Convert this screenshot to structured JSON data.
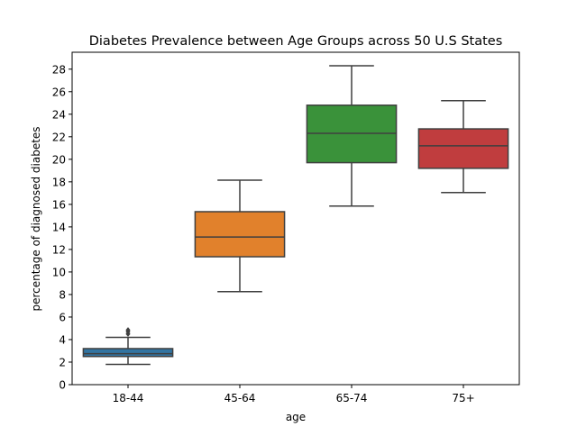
{
  "chart_data": {
    "type": "box",
    "title": "Diabetes Prevalence between Age Groups across 50 U.S States",
    "xlabel": "age",
    "ylabel": "percentage of diagnosed diabetes",
    "categories": [
      "18-44",
      "45-64",
      "65-74",
      "75+"
    ],
    "ylim": [
      0,
      29.5
    ],
    "yticks": [
      0,
      2,
      4,
      6,
      8,
      10,
      12,
      14,
      16,
      18,
      20,
      22,
      24,
      26,
      28
    ],
    "grid": false,
    "legend": "none",
    "boxes": [
      {
        "category": "18-44",
        "color": "#3274a1",
        "whisker_low": 1.8,
        "q1": 2.5,
        "median": 2.75,
        "q3": 3.2,
        "whisker_high": 4.2,
        "outliers": [
          4.5,
          4.7,
          4.85
        ]
      },
      {
        "category": "45-64",
        "color": "#e1812c",
        "whisker_low": 8.25,
        "q1": 11.35,
        "median": 13.1,
        "q3": 15.35,
        "whisker_high": 18.15,
        "outliers": []
      },
      {
        "category": "65-74",
        "color": "#3a923a",
        "whisker_low": 15.85,
        "q1": 19.7,
        "median": 22.3,
        "q3": 24.8,
        "whisker_high": 28.3,
        "outliers": []
      },
      {
        "category": "75+",
        "color": "#c03d3e",
        "whisker_low": 17.05,
        "q1": 19.2,
        "median": 21.2,
        "q3": 22.7,
        "whisker_high": 25.2,
        "outliers": []
      }
    ]
  }
}
